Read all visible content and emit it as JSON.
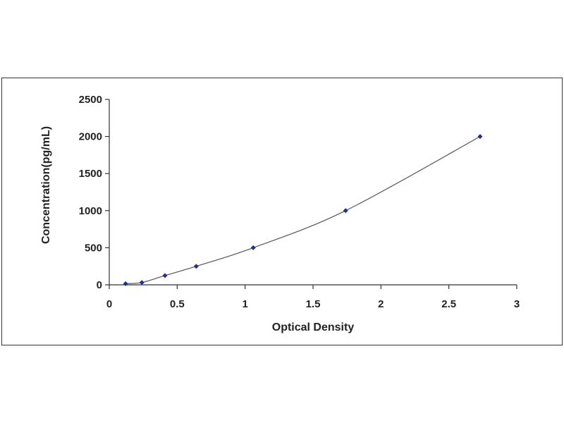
{
  "chart_data": {
    "type": "scatter",
    "title": "",
    "xlabel": "Optical Density",
    "ylabel": "Concentration(pg/mL)",
    "xlim": [
      0,
      3
    ],
    "ylim": [
      0,
      2500
    ],
    "x_ticks": [
      "0",
      "0.5",
      "1",
      "1.5",
      "2",
      "2.5",
      "3"
    ],
    "y_ticks": [
      "0",
      "500",
      "1000",
      "1500",
      "2000",
      "2500"
    ],
    "grid": false,
    "legend": "none",
    "series": [
      {
        "points": [
          {
            "x": 0.12,
            "y": 15.6
          },
          {
            "x": 0.24,
            "y": 31.2
          },
          {
            "x": 0.41,
            "y": 125
          },
          {
            "x": 0.64,
            "y": 250
          },
          {
            "x": 1.06,
            "y": 500
          },
          {
            "x": 1.74,
            "y": 1000
          },
          {
            "x": 2.73,
            "y": 2000
          }
        ],
        "fit_curve": "smooth",
        "color": "#1f2f8f",
        "line_color": "#555555"
      }
    ]
  }
}
